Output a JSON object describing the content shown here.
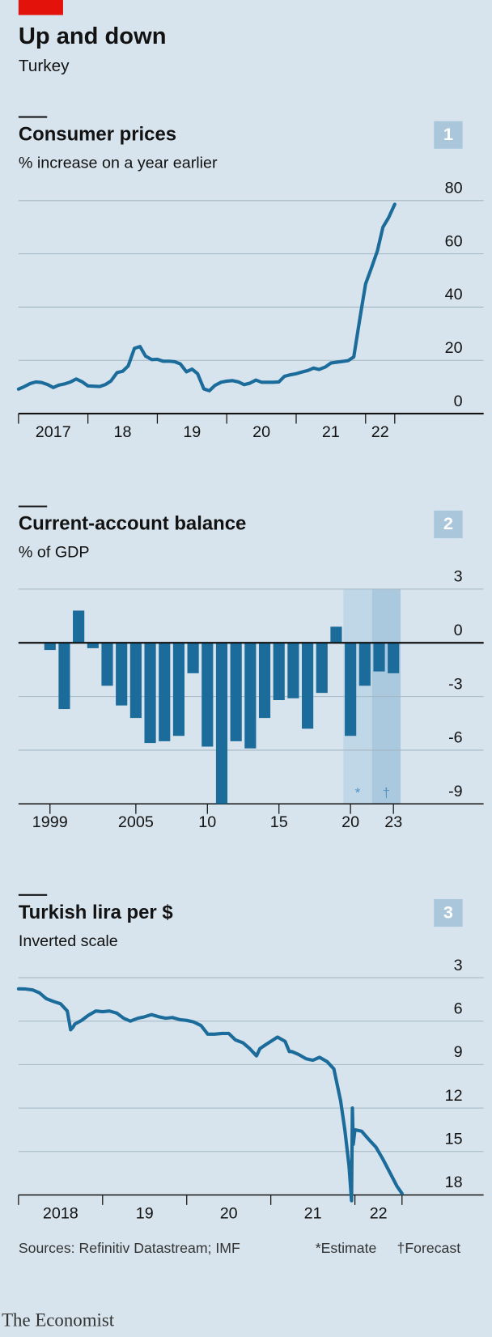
{
  "header": {
    "title": "Up and down",
    "subtitle": "Turkey"
  },
  "chart_data": [
    {
      "type": "line",
      "title": "Consumer prices",
      "subtitle": "% increase on a year earlier",
      "badge": "1",
      "color": "#1b6b9b",
      "x": [
        2017,
        2017.08,
        2017.17,
        2017.25,
        2017.33,
        2017.42,
        2017.5,
        2017.58,
        2017.67,
        2017.75,
        2017.83,
        2017.92,
        2018,
        2018.08,
        2018.17,
        2018.25,
        2018.33,
        2018.42,
        2018.5,
        2018.58,
        2018.67,
        2018.75,
        2018.83,
        2018.92,
        2019,
        2019.08,
        2019.17,
        2019.25,
        2019.33,
        2019.42,
        2019.5,
        2019.58,
        2019.67,
        2019.75,
        2019.83,
        2019.92,
        2020,
        2020.08,
        2020.17,
        2020.25,
        2020.33,
        2020.42,
        2020.5,
        2020.58,
        2020.67,
        2020.75,
        2020.83,
        2020.92,
        2021,
        2021.08,
        2021.17,
        2021.25,
        2021.33,
        2021.42,
        2021.5,
        2021.58,
        2021.67,
        2021.75,
        2021.83,
        2021.92,
        2022,
        2022.08,
        2022.17,
        2022.25,
        2022.33,
        2022.42
      ],
      "values": [
        9.2,
        10.1,
        11.3,
        11.9,
        11.7,
        10.9,
        9.8,
        10.7,
        11.2,
        11.9,
        13,
        11.9,
        10.4,
        10.3,
        10.2,
        10.9,
        12.2,
        15.4,
        15.9,
        17.9,
        24.5,
        25.2,
        21.6,
        20.3,
        20.4,
        19.7,
        19.7,
        19.5,
        18.7,
        15.7,
        16.7,
        15,
        9.3,
        8.6,
        10.6,
        11.8,
        12.2,
        12.4,
        11.9,
        10.9,
        11.4,
        12.6,
        11.8,
        11.8,
        11.8,
        11.9,
        14,
        14.6,
        15,
        15.6,
        16.2,
        17.1,
        16.6,
        17.5,
        19,
        19.3,
        19.6,
        19.9,
        21.3,
        36.1,
        48.7,
        54.4,
        61.1,
        70,
        73.5,
        78.6
      ],
      "xlim": [
        2017,
        2023.7
      ],
      "xticks": [
        2017,
        {
          "value": 2018,
          "label": "18"
        },
        {
          "value": 2019,
          "label": "19"
        },
        {
          "value": 2020,
          "label": "20"
        },
        {
          "value": 2021,
          "label": "21"
        },
        {
          "value": 2022,
          "label": "22"
        }
      ],
      "xtick_labels": "between",
      "ylim": [
        0,
        80
      ],
      "yticks": [
        0,
        20,
        40,
        60,
        80
      ],
      "grid": true
    },
    {
      "type": "bar",
      "title": "Current-account balance",
      "subtitle": "% of GDP",
      "badge": "2",
      "color": "#1b6b9b",
      "x": [
        1999,
        2000,
        2001,
        2002,
        2003,
        2004,
        2005,
        2006,
        2007,
        2008,
        2009,
        2010,
        2011,
        2012,
        2013,
        2014,
        2015,
        2016,
        2017,
        2018,
        2019,
        2020,
        2021,
        2022,
        2023
      ],
      "values": [
        -0.4,
        -3.7,
        1.8,
        -0.3,
        -2.4,
        -3.5,
        -4.2,
        -5.6,
        -5.5,
        -5.2,
        -1.7,
        -5.8,
        -9,
        -5.5,
        -5.9,
        -4.2,
        -3.2,
        -3.1,
        -4.8,
        -2.8,
        0.9,
        -5.2,
        -2.4,
        -1.6,
        -1.7
      ],
      "bands": [
        {
          "xlim": [
            2019.5,
            2021.5
          ],
          "label": "*",
          "color": "#c0d7e7"
        },
        {
          "xlim": [
            2021.5,
            2023.5
          ],
          "label": "†",
          "color": "#abc9de"
        }
      ],
      "xlim": [
        1996.8,
        2029.3
      ],
      "xticks": [
        1999,
        2005,
        {
          "value": 2010,
          "label": "10"
        },
        {
          "value": 2015,
          "label": "15"
        },
        {
          "value": 2020,
          "label": "20"
        },
        {
          "value": 2023,
          "label": "23"
        }
      ],
      "xtick_labels": "at",
      "ylim": [
        -9,
        3
      ],
      "yticks": [
        -9,
        -6,
        -3,
        0,
        3
      ],
      "grid": true
    },
    {
      "type": "line",
      "title": "Turkish lira per $",
      "subtitle": "Inverted scale",
      "badge": "3",
      "color": "#1b6b9b",
      "x": [
        2018,
        2018.08,
        2018.17,
        2018.25,
        2018.33,
        2018.42,
        2018.5,
        2018.58,
        2018.62,
        2018.65,
        2018.67,
        2018.75,
        2018.83,
        2018.92,
        2019,
        2019.08,
        2019.17,
        2019.25,
        2019.33,
        2019.42,
        2019.5,
        2019.58,
        2019.67,
        2019.75,
        2019.83,
        2019.92,
        2020,
        2020.08,
        2020.17,
        2020.25,
        2020.33,
        2020.42,
        2020.5,
        2020.58,
        2020.67,
        2020.75,
        2020.83,
        2020.87,
        2020.92,
        2021,
        2021.08,
        2021.17,
        2021.22,
        2021.25,
        2021.33,
        2021.42,
        2021.5,
        2021.58,
        2021.67,
        2021.75,
        2021.83,
        2021.88,
        2021.93,
        2021.96,
        2021.97,
        2021.98,
        2022,
        2022.08,
        2022.17,
        2022.25,
        2022.33,
        2022.42,
        2022.5,
        2022.56
      ],
      "values": [
        3.77,
        3.78,
        3.85,
        4.05,
        4.45,
        4.65,
        4.8,
        5.3,
        6.6,
        6.4,
        6.2,
        5.95,
        5.6,
        5.3,
        5.35,
        5.3,
        5.45,
        5.8,
        6,
        5.8,
        5.7,
        5.55,
        5.7,
        5.8,
        5.75,
        5.9,
        5.95,
        6.05,
        6.3,
        6.9,
        6.9,
        6.85,
        6.85,
        7.3,
        7.5,
        7.9,
        8.4,
        7.9,
        7.7,
        7.4,
        7.1,
        7.4,
        8.1,
        8.1,
        8.3,
        8.6,
        8.7,
        8.5,
        8.8,
        9.3,
        11.5,
        13.5,
        16,
        18.4,
        12,
        14.5,
        13.5,
        13.6,
        14.2,
        14.7,
        15.5,
        16.5,
        17.4,
        17.9
      ],
      "xlim": [
        2018,
        2023.53
      ],
      "xticks": [
        2018,
        {
          "value": 2019,
          "label": "19"
        },
        {
          "value": 2020,
          "label": "20"
        },
        {
          "value": 2021,
          "label": "21"
        },
        {
          "value": 2022,
          "label": "22"
        }
      ],
      "xtick_labels": "between",
      "ylim": [
        3,
        18
      ],
      "inverted": true,
      "yticks": [
        3,
        6,
        9,
        12,
        15,
        18
      ],
      "grid": true
    }
  ],
  "footer": {
    "source": "Sources: Refinitiv Datastream; IMF",
    "notes": [
      "*Estimate",
      "†Forecast"
    ],
    "brand": "The Economist"
  }
}
